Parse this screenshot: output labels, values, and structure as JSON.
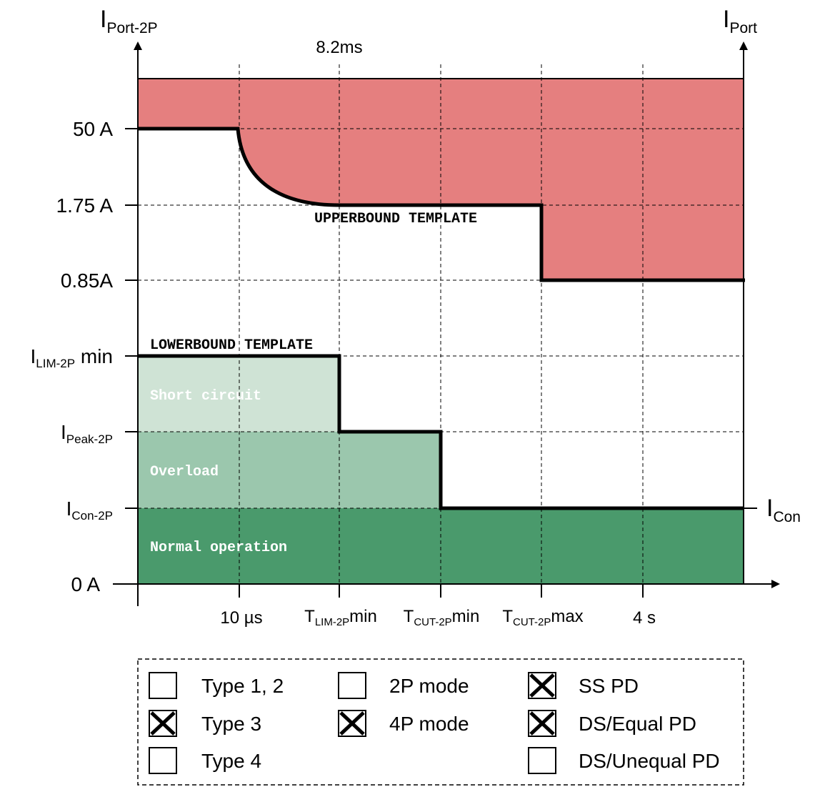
{
  "axes": {
    "left_title_main": "I",
    "left_title_sub": "Port-2P",
    "right_title_main": "I",
    "right_title_sub": "Port",
    "right_end_main": "I",
    "right_end_sub": "Con"
  },
  "time_marker": "8.2ms",
  "y_ticks": [
    {
      "main": "50 A",
      "sub": "",
      "suffix": ""
    },
    {
      "main": "1.75 A",
      "sub": "",
      "suffix": ""
    },
    {
      "main": "0.85A",
      "sub": "",
      "suffix": ""
    },
    {
      "main": "I",
      "sub": "LIM-2P",
      "suffix": " min"
    },
    {
      "main": "I",
      "sub": "Peak-2P",
      "suffix": ""
    },
    {
      "main": "I",
      "sub": "Con-2P",
      "suffix": ""
    },
    {
      "main": "0 A",
      "sub": "",
      "suffix": ""
    }
  ],
  "x_ticks": [
    {
      "main": "10 µs",
      "sub": "",
      "suffix": ""
    },
    {
      "main": "T",
      "sub": "LIM-2P",
      "suffix": "min"
    },
    {
      "main": "T",
      "sub": "CUT-2P",
      "suffix": "min"
    },
    {
      "main": "T",
      "sub": "CUT-2P",
      "suffix": "max"
    },
    {
      "main": "4 s",
      "sub": "",
      "suffix": ""
    }
  ],
  "region_labels": {
    "upperbound": "UPPERBOUND TEMPLATE",
    "lowerbound": "LOWERBOUND TEMPLATE",
    "short_circuit": "Short circuit",
    "overload": "Overload",
    "normal": "Normal operation"
  },
  "colors": {
    "upper_region": "#e57f7f",
    "short_circuit": "#cfe3d5",
    "overload": "#9bc7ad",
    "normal": "#4a9a6c"
  },
  "legend": {
    "items": [
      {
        "label": "Type 1, 2",
        "checked": false
      },
      {
        "label": "Type 3",
        "checked": true
      },
      {
        "label": "Type 4",
        "checked": false
      },
      {
        "label": "2P mode",
        "checked": false
      },
      {
        "label": "4P mode",
        "checked": true
      },
      {
        "label": "SS PD",
        "checked": true
      },
      {
        "label": "DS/Equal PD",
        "checked": true
      },
      {
        "label": "DS/Unequal PD",
        "checked": false
      }
    ]
  }
}
